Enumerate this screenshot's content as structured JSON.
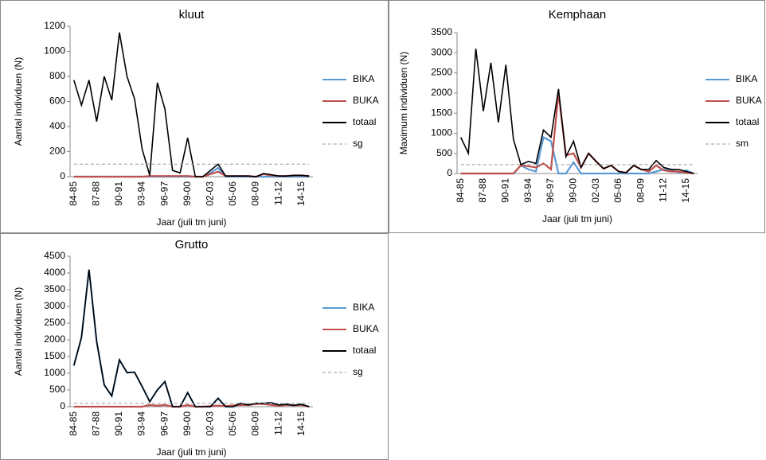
{
  "chart_data": [
    {
      "type": "line",
      "title": "kluut",
      "y_label": "Aantal individuen (N)",
      "x_label": "Jaar (juli tm juni)",
      "categories": [
        "84-85",
        null,
        null,
        "87-88",
        null,
        null,
        "90-91",
        null,
        null,
        "93-94",
        null,
        null,
        "96-97",
        null,
        null,
        "99-00",
        null,
        null,
        "02-03",
        null,
        null,
        "05-06",
        null,
        null,
        "08-09",
        null,
        null,
        "11-12",
        null,
        null,
        "14-15",
        null
      ],
      "ylim": [
        0,
        1200
      ],
      "yticks": [
        0,
        200,
        400,
        600,
        800,
        1000,
        1200
      ],
      "series": [
        {
          "name": "BIKA",
          "color": "#5b9bd5",
          "values": [
            0,
            0,
            0,
            0,
            0,
            0,
            0,
            0,
            0,
            0,
            0,
            0,
            0,
            0,
            0,
            0,
            0,
            0,
            30,
            70,
            0,
            0,
            0,
            0,
            0,
            0,
            0,
            0,
            0,
            0,
            0,
            0
          ]
        },
        {
          "name": "BUKA",
          "color": "#c0504d",
          "values": [
            0,
            0,
            0,
            0,
            0,
            0,
            0,
            0,
            0,
            0,
            5,
            5,
            5,
            5,
            5,
            5,
            0,
            0,
            20,
            40,
            5,
            5,
            5,
            5,
            0,
            20,
            10,
            5,
            5,
            10,
            10,
            5
          ]
        },
        {
          "name": "totaal",
          "color": "#000000",
          "values": [
            770,
            570,
            770,
            440,
            800,
            610,
            1150,
            800,
            620,
            220,
            10,
            750,
            540,
            50,
            30,
            310,
            0,
            0,
            50,
            100,
            5,
            5,
            5,
            5,
            0,
            25,
            15,
            5,
            5,
            10,
            10,
            5
          ]
        },
        {
          "name": "sg",
          "color": "#999999",
          "dash": true,
          "values": [
            100,
            100,
            100,
            100,
            100,
            100,
            100,
            100,
            100,
            100,
            100,
            100,
            100,
            100,
            100,
            100,
            100,
            100,
            100,
            100,
            100,
            100,
            100,
            100,
            100,
            100,
            100,
            100,
            100,
            100,
            100,
            100
          ]
        }
      ]
    },
    {
      "type": "line",
      "title": "Kemphaan",
      "y_label": "Maximum individuen (N)",
      "x_label": "Jaar (juli tm juni)",
      "categories": [
        "84-85",
        null,
        null,
        "87-88",
        null,
        null,
        "90-91",
        null,
        null,
        "93-94",
        null,
        null,
        "96-97",
        null,
        null,
        "99-00",
        null,
        null,
        "02-03",
        null,
        null,
        "05-06",
        null,
        null,
        "08-09",
        null,
        null,
        "11-12",
        null,
        null,
        "14-15",
        null
      ],
      "ylim": [
        0,
        3500
      ],
      "yticks": [
        0,
        500,
        1000,
        1500,
        2000,
        2500,
        3000,
        3500
      ],
      "series": [
        {
          "name": "BIKA",
          "color": "#5b9bd5",
          "values": [
            0,
            0,
            0,
            0,
            0,
            0,
            0,
            0,
            200,
            100,
            50,
            900,
            800,
            0,
            0,
            280,
            0,
            0,
            0,
            0,
            0,
            0,
            0,
            0,
            0,
            0,
            50,
            100,
            100,
            20,
            80,
            0
          ]
        },
        {
          "name": "BUKA",
          "color": "#c0504d",
          "values": [
            0,
            0,
            0,
            0,
            0,
            0,
            0,
            0,
            200,
            180,
            150,
            250,
            100,
            2000,
            450,
            500,
            150,
            500,
            300,
            120,
            200,
            50,
            20,
            200,
            100,
            50,
            200,
            80,
            50,
            50,
            20,
            0
          ]
        },
        {
          "name": "totaal",
          "color": "#000000",
          "values": [
            900,
            500,
            3100,
            1550,
            2750,
            1270,
            2700,
            850,
            220,
            300,
            250,
            1080,
            900,
            2100,
            420,
            800,
            150,
            500,
            300,
            120,
            200,
            50,
            20,
            200,
            100,
            100,
            320,
            150,
            100,
            100,
            50,
            0
          ]
        },
        {
          "name": "sm",
          "color": "#999999",
          "dash": true,
          "values": [
            220,
            220,
            220,
            220,
            220,
            220,
            220,
            220,
            220,
            220,
            220,
            220,
            220,
            220,
            220,
            220,
            220,
            220,
            220,
            220,
            220,
            220,
            220,
            220,
            220,
            220,
            220,
            220,
            220,
            220,
            220,
            220
          ]
        }
      ]
    },
    {
      "type": "line",
      "title": "Grutto",
      "y_label": "Aantal individuen (N)",
      "x_label": "Jaar (juli tm juni)",
      "categories": [
        "84-85",
        null,
        null,
        "87-88",
        null,
        null,
        "90-91",
        null,
        null,
        "93-94",
        null,
        null,
        "96-97",
        null,
        null,
        "99-00",
        null,
        null,
        "02-03",
        null,
        null,
        "05-06",
        null,
        null,
        "08-09",
        null,
        null,
        "11-12",
        null,
        null,
        "14-15",
        null
      ],
      "ylim": [
        0,
        4500
      ],
      "yticks": [
        0,
        500,
        1000,
        1500,
        2000,
        2500,
        3000,
        3500,
        4000,
        4500
      ],
      "series": [
        {
          "name": "BIKA",
          "color": "#5b9bd5",
          "values": [
            1230,
            2070,
            4100,
            1950,
            650,
            320,
            1400,
            1020,
            1030,
            600,
            150,
            500,
            750,
            0,
            0,
            420,
            0,
            0,
            0,
            250,
            0,
            0,
            100,
            50,
            100,
            100,
            120,
            50,
            70,
            40,
            70,
            0
          ]
        },
        {
          "name": "BUKA",
          "color": "#c0504d",
          "values": [
            0,
            0,
            0,
            0,
            0,
            0,
            0,
            0,
            0,
            0,
            50,
            30,
            50,
            0,
            0,
            50,
            0,
            0,
            20,
            30,
            20,
            40,
            50,
            50,
            80,
            80,
            50,
            30,
            50,
            40,
            50,
            0
          ]
        },
        {
          "name": "totaal",
          "color": "#000000",
          "values": [
            1230,
            2070,
            4100,
            1950,
            650,
            320,
            1400,
            1020,
            1030,
            600,
            150,
            500,
            750,
            0,
            0,
            420,
            0,
            0,
            0,
            250,
            0,
            0,
            100,
            50,
            100,
            100,
            120,
            50,
            70,
            40,
            70,
            0
          ]
        },
        {
          "name": "sg",
          "color": "#999999",
          "dash": true,
          "values": [
            100,
            100,
            100,
            100,
            100,
            100,
            100,
            100,
            100,
            100,
            100,
            100,
            100,
            100,
            100,
            100,
            100,
            100,
            100,
            100,
            100,
            100,
            100,
            100,
            100,
            100,
            100,
            100,
            100,
            100,
            100,
            100
          ]
        }
      ]
    }
  ]
}
